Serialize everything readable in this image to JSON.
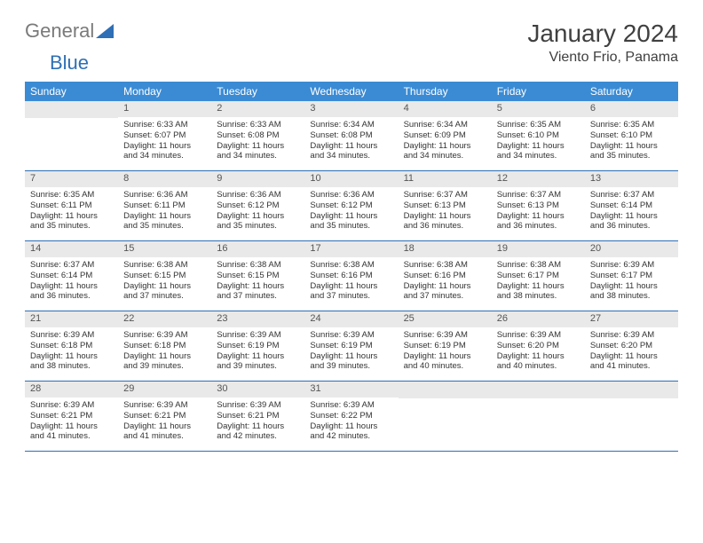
{
  "logo": {
    "text1": "General",
    "text2": "Blue"
  },
  "title": "January 2024",
  "location": "Viento Frio, Panama",
  "colors": {
    "header_bg": "#3b8bd4",
    "row_border": "#2f6fb5",
    "daynum_bg": "#e9e9e9",
    "text": "#333333"
  },
  "weekdays": [
    "Sunday",
    "Monday",
    "Tuesday",
    "Wednesday",
    "Thursday",
    "Friday",
    "Saturday"
  ],
  "weeks": [
    [
      {
        "n": "",
        "lines": []
      },
      {
        "n": "1",
        "lines": [
          "Sunrise: 6:33 AM",
          "Sunset: 6:07 PM",
          "Daylight: 11 hours and 34 minutes."
        ]
      },
      {
        "n": "2",
        "lines": [
          "Sunrise: 6:33 AM",
          "Sunset: 6:08 PM",
          "Daylight: 11 hours and 34 minutes."
        ]
      },
      {
        "n": "3",
        "lines": [
          "Sunrise: 6:34 AM",
          "Sunset: 6:08 PM",
          "Daylight: 11 hours and 34 minutes."
        ]
      },
      {
        "n": "4",
        "lines": [
          "Sunrise: 6:34 AM",
          "Sunset: 6:09 PM",
          "Daylight: 11 hours and 34 minutes."
        ]
      },
      {
        "n": "5",
        "lines": [
          "Sunrise: 6:35 AM",
          "Sunset: 6:10 PM",
          "Daylight: 11 hours and 34 minutes."
        ]
      },
      {
        "n": "6",
        "lines": [
          "Sunrise: 6:35 AM",
          "Sunset: 6:10 PM",
          "Daylight: 11 hours and 35 minutes."
        ]
      }
    ],
    [
      {
        "n": "7",
        "lines": [
          "Sunrise: 6:35 AM",
          "Sunset: 6:11 PM",
          "Daylight: 11 hours and 35 minutes."
        ]
      },
      {
        "n": "8",
        "lines": [
          "Sunrise: 6:36 AM",
          "Sunset: 6:11 PM",
          "Daylight: 11 hours and 35 minutes."
        ]
      },
      {
        "n": "9",
        "lines": [
          "Sunrise: 6:36 AM",
          "Sunset: 6:12 PM",
          "Daylight: 11 hours and 35 minutes."
        ]
      },
      {
        "n": "10",
        "lines": [
          "Sunrise: 6:36 AM",
          "Sunset: 6:12 PM",
          "Daylight: 11 hours and 35 minutes."
        ]
      },
      {
        "n": "11",
        "lines": [
          "Sunrise: 6:37 AM",
          "Sunset: 6:13 PM",
          "Daylight: 11 hours and 36 minutes."
        ]
      },
      {
        "n": "12",
        "lines": [
          "Sunrise: 6:37 AM",
          "Sunset: 6:13 PM",
          "Daylight: 11 hours and 36 minutes."
        ]
      },
      {
        "n": "13",
        "lines": [
          "Sunrise: 6:37 AM",
          "Sunset: 6:14 PM",
          "Daylight: 11 hours and 36 minutes."
        ]
      }
    ],
    [
      {
        "n": "14",
        "lines": [
          "Sunrise: 6:37 AM",
          "Sunset: 6:14 PM",
          "Daylight: 11 hours and 36 minutes."
        ]
      },
      {
        "n": "15",
        "lines": [
          "Sunrise: 6:38 AM",
          "Sunset: 6:15 PM",
          "Daylight: 11 hours and 37 minutes."
        ]
      },
      {
        "n": "16",
        "lines": [
          "Sunrise: 6:38 AM",
          "Sunset: 6:15 PM",
          "Daylight: 11 hours and 37 minutes."
        ]
      },
      {
        "n": "17",
        "lines": [
          "Sunrise: 6:38 AM",
          "Sunset: 6:16 PM",
          "Daylight: 11 hours and 37 minutes."
        ]
      },
      {
        "n": "18",
        "lines": [
          "Sunrise: 6:38 AM",
          "Sunset: 6:16 PM",
          "Daylight: 11 hours and 37 minutes."
        ]
      },
      {
        "n": "19",
        "lines": [
          "Sunrise: 6:38 AM",
          "Sunset: 6:17 PM",
          "Daylight: 11 hours and 38 minutes."
        ]
      },
      {
        "n": "20",
        "lines": [
          "Sunrise: 6:39 AM",
          "Sunset: 6:17 PM",
          "Daylight: 11 hours and 38 minutes."
        ]
      }
    ],
    [
      {
        "n": "21",
        "lines": [
          "Sunrise: 6:39 AM",
          "Sunset: 6:18 PM",
          "Daylight: 11 hours and 38 minutes."
        ]
      },
      {
        "n": "22",
        "lines": [
          "Sunrise: 6:39 AM",
          "Sunset: 6:18 PM",
          "Daylight: 11 hours and 39 minutes."
        ]
      },
      {
        "n": "23",
        "lines": [
          "Sunrise: 6:39 AM",
          "Sunset: 6:19 PM",
          "Daylight: 11 hours and 39 minutes."
        ]
      },
      {
        "n": "24",
        "lines": [
          "Sunrise: 6:39 AM",
          "Sunset: 6:19 PM",
          "Daylight: 11 hours and 39 minutes."
        ]
      },
      {
        "n": "25",
        "lines": [
          "Sunrise: 6:39 AM",
          "Sunset: 6:19 PM",
          "Daylight: 11 hours and 40 minutes."
        ]
      },
      {
        "n": "26",
        "lines": [
          "Sunrise: 6:39 AM",
          "Sunset: 6:20 PM",
          "Daylight: 11 hours and 40 minutes."
        ]
      },
      {
        "n": "27",
        "lines": [
          "Sunrise: 6:39 AM",
          "Sunset: 6:20 PM",
          "Daylight: 11 hours and 41 minutes."
        ]
      }
    ],
    [
      {
        "n": "28",
        "lines": [
          "Sunrise: 6:39 AM",
          "Sunset: 6:21 PM",
          "Daylight: 11 hours and 41 minutes."
        ]
      },
      {
        "n": "29",
        "lines": [
          "Sunrise: 6:39 AM",
          "Sunset: 6:21 PM",
          "Daylight: 11 hours and 41 minutes."
        ]
      },
      {
        "n": "30",
        "lines": [
          "Sunrise: 6:39 AM",
          "Sunset: 6:21 PM",
          "Daylight: 11 hours and 42 minutes."
        ]
      },
      {
        "n": "31",
        "lines": [
          "Sunrise: 6:39 AM",
          "Sunset: 6:22 PM",
          "Daylight: 11 hours and 42 minutes."
        ]
      },
      {
        "n": "",
        "lines": []
      },
      {
        "n": "",
        "lines": []
      },
      {
        "n": "",
        "lines": []
      }
    ]
  ]
}
